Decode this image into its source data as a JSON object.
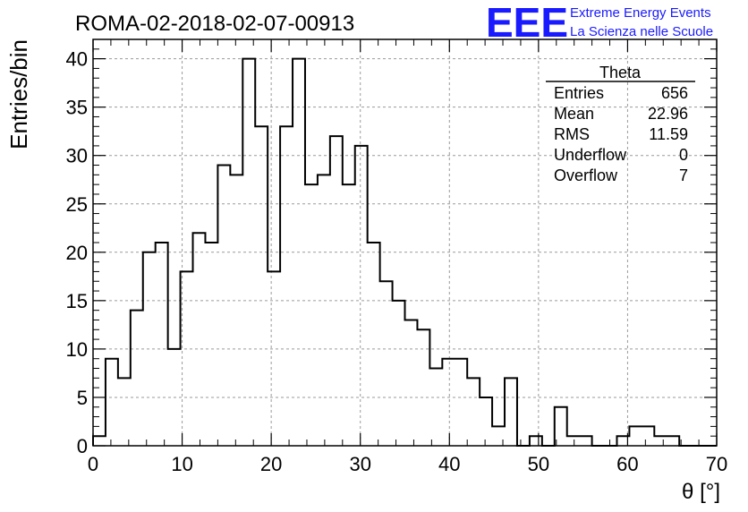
{
  "chart_data": {
    "type": "bar",
    "title": "ROMA-02-2018-02-07-00913",
    "xlabel": "θ [°]",
    "ylabel": "Entries/bin",
    "xlim": [
      0,
      70
    ],
    "ylim": [
      0,
      42
    ],
    "grid": true,
    "bin_width": 1.4,
    "x_ticks": [
      "0",
      "10",
      "20",
      "30",
      "40",
      "50",
      "60",
      "70"
    ],
    "y_ticks": [
      "0",
      "5",
      "10",
      "15",
      "20",
      "25",
      "30",
      "35",
      "40"
    ],
    "values": [
      1,
      9,
      7,
      14,
      20,
      21,
      10,
      18,
      22,
      21,
      29,
      28,
      40,
      33,
      18,
      33,
      40,
      27,
      28,
      32,
      27,
      31,
      21,
      17,
      15,
      13,
      12,
      8,
      9,
      9,
      7,
      5,
      2,
      7,
      0,
      1,
      0,
      4,
      1,
      1,
      0,
      0,
      1,
      2,
      2,
      1,
      1,
      0,
      0,
      0
    ],
    "stats": {
      "title": "Theta",
      "rows": [
        {
          "label": "Entries",
          "value": "656"
        },
        {
          "label": "Mean",
          "value": "22.96"
        },
        {
          "label": "RMS",
          "value": "11.59"
        },
        {
          "label": "Underflow",
          "value": "0"
        },
        {
          "label": "Overflow",
          "value": "7"
        }
      ]
    },
    "logo": {
      "mark": "EEE",
      "line1": "Extreme Energy Events",
      "line2": "La Scienza nelle Scuole",
      "color": "#1a1aff"
    }
  }
}
